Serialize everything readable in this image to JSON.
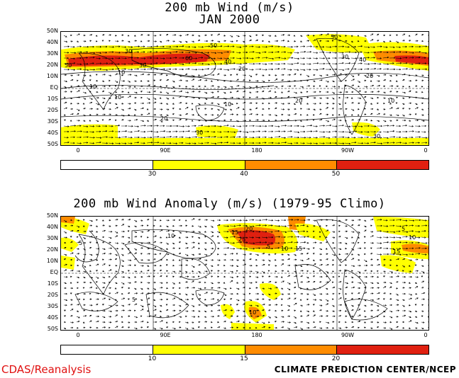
{
  "panel1": {
    "title_line1": "200 mb Wind (m/s)",
    "title_line2": "JAN 2000",
    "lat_labels": [
      "50N",
      "40N",
      "30N",
      "20N",
      "10N",
      "EQ",
      "10S",
      "20S",
      "30S",
      "40S",
      "50S"
    ],
    "lon_labels": [
      "0",
      "90E",
      "180",
      "90W",
      "0"
    ],
    "colorbar": {
      "colors": [
        "#ffffff",
        "#ffff00",
        "#ff8c00",
        "#e02010"
      ],
      "ticks": [
        "30",
        "40",
        "50"
      ]
    },
    "contour_labels": [
      "50",
      "30",
      "60",
      "50",
      "40",
      "30",
      "20",
      "10",
      "10",
      "10",
      "20",
      "30",
      "10",
      "20",
      "30",
      "40",
      "50",
      "10",
      "20",
      "30"
    ]
  },
  "panel2": {
    "title": "200 mb Wind Anomaly (m/s) (1979-95 Climo)",
    "lat_labels": [
      "50N",
      "40N",
      "30N",
      "20N",
      "10N",
      "EQ",
      "10S",
      "20S",
      "30S",
      "40S",
      "50S"
    ],
    "lon_labels": [
      "0",
      "90E",
      "180",
      "90W",
      "0"
    ],
    "colorbar": {
      "colors": [
        "#ffffff",
        "#ffff00",
        "#ff8c00",
        "#e02010"
      ],
      "ticks": [
        "10",
        "15",
        "20"
      ]
    },
    "contour_labels": [
      "5",
      "10",
      "15",
      "20",
      "25",
      "5",
      "10",
      "15",
      "5",
      "10",
      "15",
      "10",
      "5"
    ]
  },
  "footer": {
    "left": "CDAS/Reanalysis",
    "right": "CLIMATE PREDICTION CENTER/NCEP"
  }
}
